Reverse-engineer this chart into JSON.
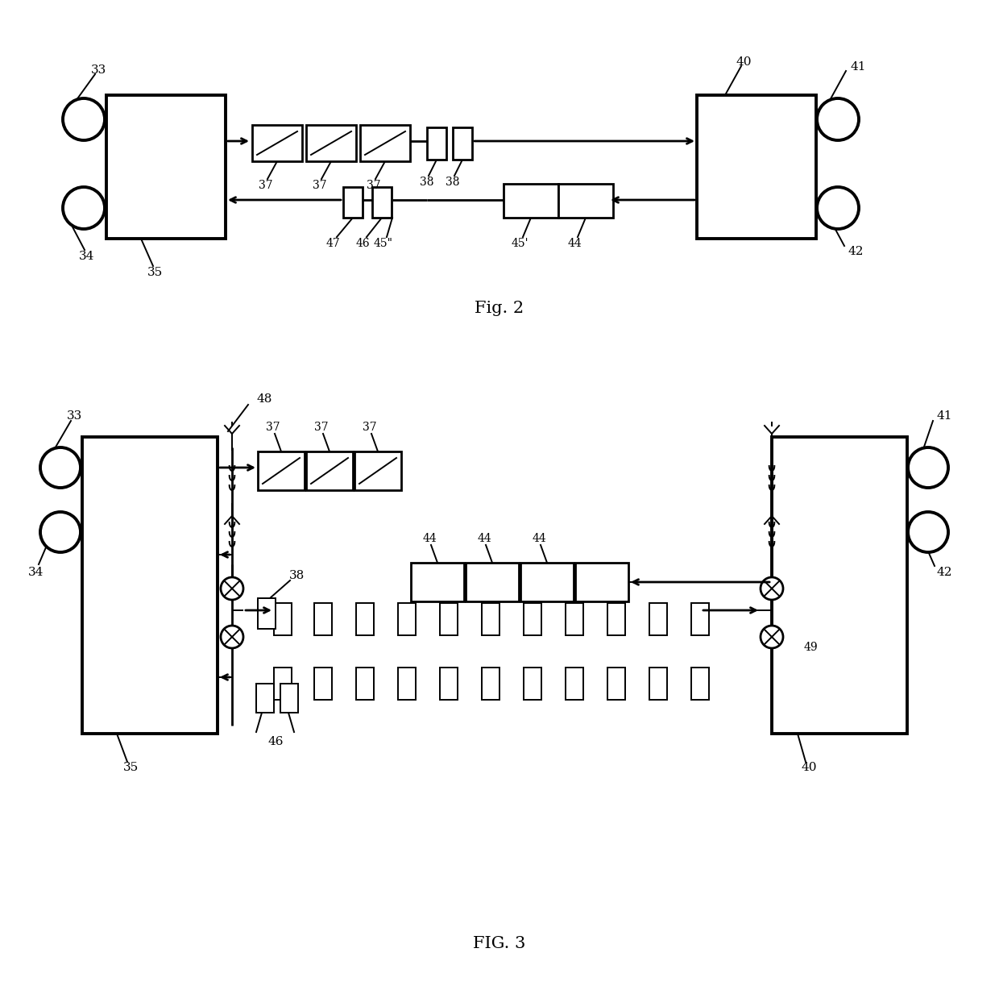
{
  "fig_width": 12.4,
  "fig_height": 12.28,
  "bg_color": "#ffffff",
  "line_color": "#000000",
  "fig2_title": "Fig. 2",
  "fig3_title": "FIG. 3"
}
